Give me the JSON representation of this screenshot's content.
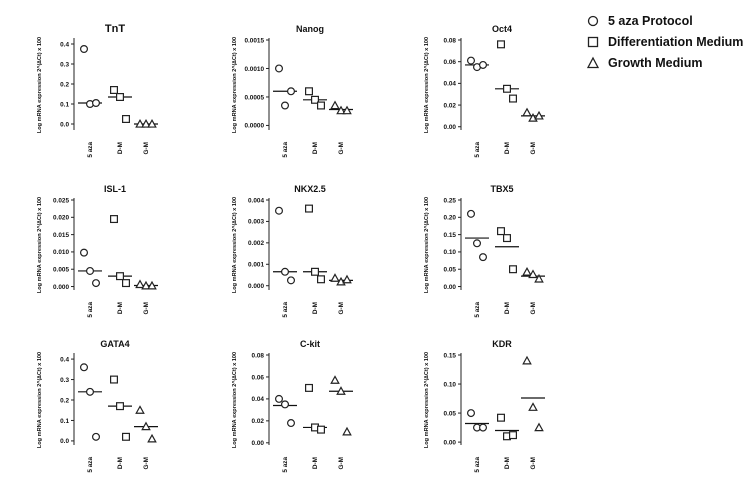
{
  "chart_data": [
    {
      "type": "scatter",
      "title": "TnT",
      "ylabel": "Log mRNA expression 2^(∆Ct) x 100",
      "categories": [
        "5 aza",
        "D-M",
        "G-M"
      ],
      "ylim": [
        -0.03,
        0.42
      ],
      "yticks": [
        0.0,
        0.1,
        0.2,
        0.3,
        0.4
      ],
      "ytick_labels": [
        "0.0",
        "0.1",
        "0.2",
        "0.3",
        "0.4"
      ],
      "series": [
        {
          "marker": "circle",
          "values": [
            0.375,
            0.1,
            0.105
          ],
          "median": 0.105
        },
        {
          "marker": "square",
          "values": [
            0.17,
            0.135,
            0.025
          ],
          "median": 0.135
        },
        {
          "marker": "triangle",
          "values": [
            0.0,
            0.0,
            0.0
          ],
          "median": 0.0
        }
      ]
    },
    {
      "type": "scatter",
      "title": "Nanog",
      "ylabel": "Log mRNA expression 2^(∆Ct) x 100",
      "categories": [
        "5 aza",
        "D-M",
        "G-M"
      ],
      "ylim": [
        -8e-05,
        0.0015
      ],
      "yticks": [
        0.0,
        0.0005,
        0.001,
        0.0015
      ],
      "ytick_labels": [
        "0.0000",
        "0.0005",
        "0.0010",
        "0.0015"
      ],
      "series": [
        {
          "marker": "circle",
          "values": [
            0.001,
            0.00035,
            0.0006
          ],
          "median": 0.0006
        },
        {
          "marker": "square",
          "values": [
            0.0006,
            0.00045,
            0.00035
          ],
          "median": 0.00045
        },
        {
          "marker": "triangle",
          "values": [
            0.00035,
            0.00026,
            0.00026
          ],
          "median": 0.00028
        }
      ]
    },
    {
      "type": "scatter",
      "title": "Oct4",
      "ylabel": "Log mRNA expression 2^(∆Ct) x 100",
      "categories": [
        "5 aza",
        "D-M",
        "G-M"
      ],
      "ylim": [
        -0.003,
        0.08
      ],
      "yticks": [
        0.0,
        0.02,
        0.04,
        0.06,
        0.08
      ],
      "ytick_labels": [
        "0.00",
        "0.02",
        "0.04",
        "0.06",
        "0.08"
      ],
      "series": [
        {
          "marker": "circle",
          "values": [
            0.061,
            0.055,
            0.057
          ],
          "median": 0.057
        },
        {
          "marker": "square",
          "values": [
            0.076,
            0.035,
            0.026
          ],
          "median": 0.035
        },
        {
          "marker": "triangle",
          "values": [
            0.013,
            0.008,
            0.01
          ],
          "median": 0.01
        }
      ]
    },
    {
      "type": "scatter",
      "title": "ISL-1",
      "ylabel": "Log mRNA expression 2^(∆Ct) x 100",
      "categories": [
        "5 aza",
        "D-M",
        "G-M"
      ],
      "ylim": [
        -0.001,
        0.025
      ],
      "yticks": [
        0.0,
        0.005,
        0.01,
        0.015,
        0.02,
        0.025
      ],
      "ytick_labels": [
        "0.000",
        "0.005",
        "0.010",
        "0.015",
        "0.020",
        "0.025"
      ],
      "series": [
        {
          "marker": "circle",
          "values": [
            0.0098,
            0.0045,
            0.001
          ],
          "median": 0.0045
        },
        {
          "marker": "square",
          "values": [
            0.0195,
            0.003,
            0.001
          ],
          "median": 0.003
        },
        {
          "marker": "triangle",
          "values": [
            0.0006,
            0.0002,
            0.0002
          ],
          "median": 0.0003
        }
      ]
    },
    {
      "type": "scatter",
      "title": "NKX2.5",
      "ylabel": "Log mRNA expression 2^(∆Ct) x 100",
      "categories": [
        "5 aza",
        "D-M",
        "G-M"
      ],
      "ylim": [
        -0.0002,
        0.004
      ],
      "yticks": [
        0.0,
        0.001,
        0.002,
        0.003,
        0.004
      ],
      "ytick_labels": [
        "0.000",
        "0.001",
        "0.002",
        "0.003",
        "0.004"
      ],
      "series": [
        {
          "marker": "circle",
          "values": [
            0.0035,
            0.00065,
            0.00025
          ],
          "median": 0.00065
        },
        {
          "marker": "square",
          "values": [
            0.0036,
            0.00065,
            0.0003
          ],
          "median": 0.00065
        },
        {
          "marker": "triangle",
          "values": [
            0.00035,
            0.00018,
            0.00028
          ],
          "median": 0.00025
        }
      ]
    },
    {
      "type": "scatter",
      "title": "TBX5",
      "ylabel": "Log mRNA expression 2^(∆Ct) x 100",
      "categories": [
        "5 aza",
        "D-M",
        "G-M"
      ],
      "ylim": [
        -0.01,
        0.25
      ],
      "yticks": [
        0.0,
        0.05,
        0.1,
        0.15,
        0.2,
        0.25
      ],
      "ytick_labels": [
        "0.00",
        "0.05",
        "0.10",
        "0.15",
        "0.20",
        "0.25"
      ],
      "series": [
        {
          "marker": "circle",
          "values": [
            0.21,
            0.125,
            0.085
          ],
          "median": 0.14
        },
        {
          "marker": "square",
          "values": [
            0.16,
            0.14,
            0.05
          ],
          "median": 0.115
        },
        {
          "marker": "triangle",
          "values": [
            0.042,
            0.035,
            0.022
          ],
          "median": 0.03
        }
      ]
    },
    {
      "type": "scatter",
      "title": "GATA4",
      "ylabel": "Log mRNA expression 2^(∆Ct) x 100",
      "categories": [
        "5 aza",
        "D-M",
        "G-M"
      ],
      "ylim": [
        -0.02,
        0.42
      ],
      "yticks": [
        0.0,
        0.1,
        0.2,
        0.3,
        0.4
      ],
      "ytick_labels": [
        "0.0",
        "0.1",
        "0.2",
        "0.3",
        "0.4"
      ],
      "series": [
        {
          "marker": "circle",
          "values": [
            0.36,
            0.24,
            0.02
          ],
          "median": 0.24
        },
        {
          "marker": "square",
          "values": [
            0.3,
            0.17,
            0.02
          ],
          "median": 0.17
        },
        {
          "marker": "triangle",
          "values": [
            0.15,
            0.07,
            0.01
          ],
          "median": 0.07
        }
      ]
    },
    {
      "type": "scatter",
      "title": "C-kit",
      "ylabel": "Log mRNA expression 2^(∆Ct) x 100",
      "categories": [
        "5 aza",
        "D-M",
        "G-M"
      ],
      "ylim": [
        -0.002,
        0.08
      ],
      "yticks": [
        0.0,
        0.02,
        0.04,
        0.06,
        0.08
      ],
      "ytick_labels": [
        "0.00",
        "0.02",
        "0.04",
        "0.06",
        "0.08"
      ],
      "series": [
        {
          "marker": "circle",
          "values": [
            0.04,
            0.035,
            0.018
          ],
          "median": 0.034
        },
        {
          "marker": "square",
          "values": [
            0.05,
            0.014,
            0.012
          ],
          "median": 0.014
        },
        {
          "marker": "triangle",
          "values": [
            0.057,
            0.047,
            0.01
          ],
          "median": 0.047
        }
      ]
    },
    {
      "type": "scatter",
      "title": "KDR",
      "ylabel": "Log mRNA expression 2^(∆Ct) x 100",
      "categories": [
        "5 aza",
        "D-M",
        "G-M"
      ],
      "ylim": [
        -0.005,
        0.15
      ],
      "yticks": [
        0.0,
        0.05,
        0.1,
        0.15
      ],
      "ytick_labels": [
        "0.00",
        "0.05",
        "0.10",
        "0.15"
      ],
      "series": [
        {
          "marker": "circle",
          "values": [
            0.05,
            0.025,
            0.025
          ],
          "median": 0.032
        },
        {
          "marker": "square",
          "values": [
            0.042,
            0.01,
            0.012
          ],
          "median": 0.02
        },
        {
          "marker": "triangle",
          "values": [
            0.14,
            0.06,
            0.025
          ],
          "median": 0.076
        }
      ]
    }
  ],
  "legend": [
    {
      "marker": "circle",
      "label": "5 aza Protocol"
    },
    {
      "marker": "square",
      "label": "Differentiation Medium"
    },
    {
      "marker": "triangle",
      "label": "Growth Medium"
    }
  ]
}
